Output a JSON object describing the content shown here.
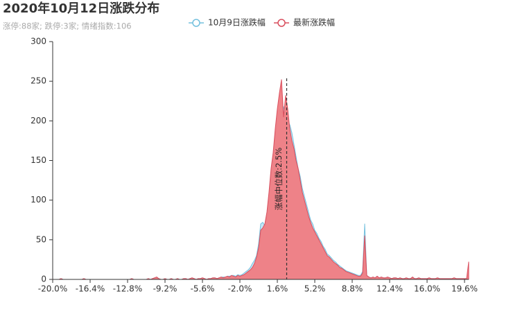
{
  "chart_data": {
    "type": "area",
    "title": "2020年10月12日涨跌分布",
    "subtitle": "涨停:88家; 跌停:3家; 情绪指数:106",
    "x": [
      -20,
      -19.8,
      -19.6,
      -19.4,
      -19.2,
      -19,
      -18.8,
      -18.6,
      -18.4,
      -18.2,
      -18,
      -17.8,
      -17.6,
      -17.4,
      -17.2,
      -17,
      -16.8,
      -16.6,
      -16.4,
      -16.2,
      -16,
      -15.8,
      -15.6,
      -15.4,
      -15.2,
      -15,
      -14.8,
      -14.6,
      -14.4,
      -14.2,
      -14,
      -13.8,
      -13.6,
      -13.4,
      -13.2,
      -13,
      -12.8,
      -12.6,
      -12.4,
      -12.2,
      -12,
      -11.8,
      -11.6,
      -11.4,
      -11.2,
      -11,
      -10.8,
      -10.6,
      -10.4,
      -10.2,
      -10,
      -9.8,
      -9.6,
      -9.4,
      -9.2,
      -9,
      -8.8,
      -8.6,
      -8.4,
      -8.2,
      -8,
      -7.8,
      -7.6,
      -7.4,
      -7.2,
      -7,
      -6.8,
      -6.6,
      -6.4,
      -6.2,
      -6,
      -5.8,
      -5.6,
      -5.4,
      -5.2,
      -5,
      -4.8,
      -4.6,
      -4.4,
      -4.2,
      -4,
      -3.8,
      -3.6,
      -3.4,
      -3.2,
      -3,
      -2.8,
      -2.6,
      -2.4,
      -2.2,
      -2,
      -1.8,
      -1.6,
      -1.4,
      -1.2,
      -1,
      -0.8,
      -0.6,
      -0.4,
      -0.2,
      0,
      0.2,
      0.4,
      0.6,
      0.8,
      1,
      1.2,
      1.4,
      1.6,
      1.8,
      2,
      2.2,
      2.4,
      2.6,
      2.8,
      3,
      3.2,
      3.4,
      3.6,
      3.8,
      4,
      4.2,
      4.4,
      4.6,
      4.8,
      5,
      5.2,
      5.4,
      5.6,
      5.8,
      6,
      6.2,
      6.4,
      6.6,
      6.8,
      7,
      7.2,
      7.4,
      7.6,
      7.8,
      8,
      8.2,
      8.4,
      8.6,
      8.8,
      9,
      9.2,
      9.4,
      9.6,
      9.8,
      10,
      10.2,
      10.4,
      10.6,
      10.8,
      11,
      11.2,
      11.4,
      11.6,
      11.8,
      12,
      12.2,
      12.4,
      12.6,
      12.8,
      13,
      13.2,
      13.4,
      13.6,
      13.8,
      14,
      14.2,
      14.4,
      14.6,
      14.8,
      15,
      15.2,
      15.4,
      15.6,
      15.8,
      16,
      16.2,
      16.4,
      16.6,
      16.8,
      17,
      17.2,
      17.4,
      17.6,
      17.8,
      18,
      18.2,
      18.4,
      18.6,
      18.8,
      19,
      19.2,
      19.4,
      19.6,
      19.8,
      20
    ],
    "series": [
      {
        "name": "10月9日涨跌幅",
        "color": "#73c0de",
        "fill": "#bfe3f4",
        "values": [
          0,
          0,
          0,
          0,
          1,
          0,
          0,
          0,
          0,
          0,
          0,
          0,
          0,
          0,
          0,
          1,
          0,
          0,
          0,
          0,
          0,
          0,
          0,
          0,
          0,
          0,
          0,
          0,
          0,
          0,
          0,
          0,
          0,
          0,
          0,
          0,
          0,
          0,
          1,
          0,
          0,
          0,
          0,
          0,
          0,
          0,
          1,
          0,
          1,
          2,
          3,
          1,
          0,
          0,
          1,
          0,
          0,
          1,
          0,
          0,
          1,
          0,
          0,
          1,
          1,
          0,
          1,
          2,
          1,
          0,
          1,
          1,
          2,
          1,
          0,
          1,
          1,
          2,
          2,
          1,
          2,
          3,
          3,
          3,
          4,
          4,
          5,
          5,
          4,
          6,
          5,
          6,
          8,
          10,
          12,
          15,
          20,
          24,
          30,
          45,
          70,
          72,
          68,
          80,
          105,
          130,
          155,
          180,
          200,
          215,
          210,
          218,
          205,
          200,
          195,
          185,
          170,
          155,
          140,
          130,
          115,
          105,
          95,
          85,
          75,
          70,
          62,
          58,
          52,
          48,
          42,
          38,
          32,
          30,
          27,
          24,
          22,
          19,
          17,
          15,
          13,
          11,
          10,
          9,
          8,
          7,
          6,
          5,
          5,
          10,
          70,
          5,
          3,
          2,
          3,
          2,
          4,
          2,
          3,
          2,
          2,
          3,
          2,
          1,
          2,
          2,
          1,
          2,
          1,
          1,
          2,
          1,
          1,
          3,
          1,
          1,
          2,
          1,
          1,
          1,
          1,
          2,
          1,
          1,
          1,
          2,
          1,
          1,
          1,
          1,
          1,
          1,
          1,
          2,
          1,
          1,
          1,
          1,
          1,
          1,
          3
        ]
      },
      {
        "name": "最新涨跌幅",
        "color": "#d94e5d",
        "fill": "#f07c82",
        "values": [
          0,
          0,
          0,
          0,
          1,
          0,
          0,
          0,
          0,
          0,
          0,
          0,
          0,
          0,
          0,
          1,
          0,
          0,
          0,
          0,
          0,
          0,
          0,
          0,
          0,
          0,
          0,
          0,
          0,
          0,
          0,
          0,
          0,
          0,
          0,
          0,
          0,
          0,
          1,
          0,
          0,
          0,
          0,
          0,
          0,
          0,
          1,
          0,
          1,
          2,
          3,
          1,
          0,
          0,
          1,
          0,
          0,
          1,
          0,
          0,
          1,
          0,
          0,
          1,
          1,
          0,
          1,
          2,
          1,
          0,
          1,
          1,
          2,
          1,
          0,
          1,
          1,
          2,
          2,
          1,
          2,
          3,
          2,
          3,
          4,
          3,
          5,
          4,
          3,
          5,
          4,
          5,
          6,
          8,
          10,
          12,
          15,
          20,
          28,
          40,
          62,
          65,
          70,
          85,
          110,
          140,
          160,
          190,
          215,
          235,
          252,
          205,
          232,
          215,
          190,
          175,
          165,
          150,
          140,
          125,
          110,
          100,
          90,
          80,
          72,
          65,
          60,
          55,
          50,
          45,
          40,
          35,
          30,
          28,
          25,
          22,
          20,
          18,
          15,
          14,
          12,
          10,
          9,
          8,
          7,
          6,
          5,
          4,
          4,
          8,
          55,
          5,
          3,
          2,
          3,
          2,
          4,
          2,
          3,
          2,
          2,
          3,
          2,
          1,
          2,
          2,
          1,
          2,
          1,
          1,
          2,
          1,
          1,
          3,
          1,
          1,
          2,
          1,
          1,
          1,
          1,
          2,
          1,
          1,
          1,
          2,
          1,
          1,
          1,
          1,
          1,
          1,
          1,
          2,
          1,
          1,
          1,
          1,
          1,
          1,
          22
        ]
      }
    ],
    "median": 2.5,
    "median_label": "涨幅中位数:2.5%",
    "xlim": [
      -20,
      20
    ],
    "xticks": [
      {
        "value": -20,
        "label": "-20.0%"
      },
      {
        "value": -16.4,
        "label": "-16.4%"
      },
      {
        "value": -12.8,
        "label": "-12.8%"
      },
      {
        "value": -9.2,
        "label": "-9.2%"
      },
      {
        "value": -5.6,
        "label": "-5.6%"
      },
      {
        "value": -2,
        "label": "-2.0%"
      },
      {
        "value": 1.6,
        "label": "1.6%"
      },
      {
        "value": 5.2,
        "label": "5.2%"
      },
      {
        "value": 8.8,
        "label": "8.8%"
      },
      {
        "value": 12.4,
        "label": "12.4%"
      },
      {
        "value": 16,
        "label": "16.0%"
      },
      {
        "value": 19.6,
        "label": "19.6%"
      }
    ],
    "ylim": [
      0,
      300
    ],
    "yticks": [
      0,
      50,
      100,
      150,
      200,
      250,
      300
    ],
    "grid": false,
    "legend": "top"
  }
}
